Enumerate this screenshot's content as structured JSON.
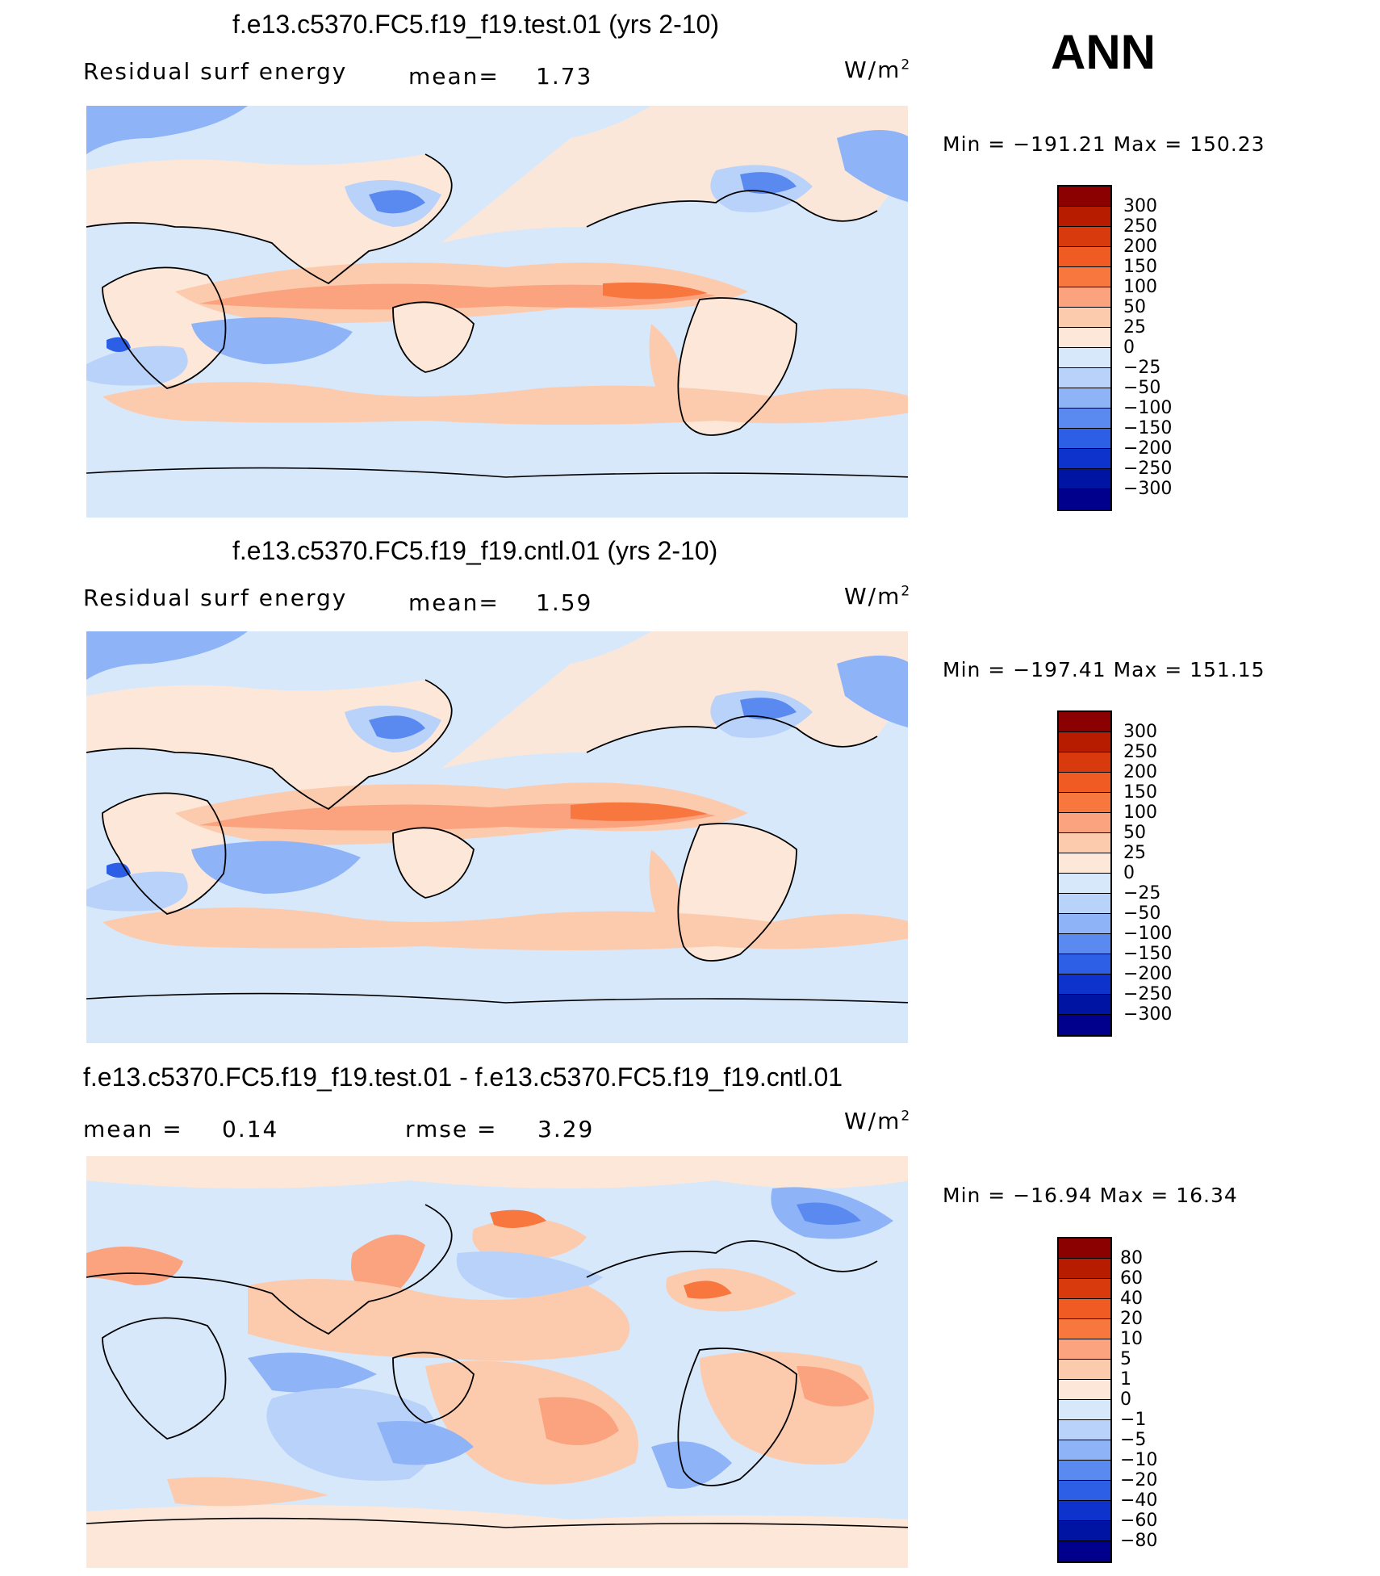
{
  "season": "ANN",
  "units": {
    "base": "W/m",
    "exp": "2"
  },
  "panels": [
    {
      "title": "f.e13.c5370.FC5.f19_f19.test.01 (yrs 2-10)",
      "left_label": "Residual surf energy",
      "mean_label": "mean=",
      "mean_value": "1.73",
      "minmax": "Min = −191.21 Max = 150.23"
    },
    {
      "title": "f.e13.c5370.FC5.f19_f19.cntl.01 (yrs 2-10)",
      "left_label": "Residual surf energy",
      "mean_label": "mean=",
      "mean_value": "1.59",
      "minmax": "Min = −197.41 Max = 151.15"
    },
    {
      "title": "f.e13.c5370.FC5.f19_f19.test.01 - f.e13.c5370.FC5.f19_f19.cntl.01",
      "mean_label": "mean =",
      "mean_value": "0.14",
      "rmse_label": "rmse =",
      "rmse_value": "3.29",
      "minmax": "Min = −16.94 Max =  16.34"
    }
  ],
  "colorbar_main": {
    "labels": [
      "300",
      "250",
      "200",
      "150",
      "100",
      "50",
      "25",
      "0",
      "−25",
      "−50",
      "−100",
      "−150",
      "−200",
      "−250",
      "−300"
    ],
    "colors": [
      "#8b0000",
      "#b71c00",
      "#d83a0e",
      "#f05a23",
      "#f8773f",
      "#fba27f",
      "#fccbae",
      "#fde7d8",
      "#d7e8fb",
      "#b9d2fa",
      "#8eb3f7",
      "#5a89f0",
      "#2c5fe6",
      "#0d33cc",
      "#0014a3",
      "#00008c"
    ]
  },
  "colorbar_diff": {
    "labels": [
      "80",
      "60",
      "40",
      "20",
      "10",
      "5",
      "1",
      "0",
      "−1",
      "−5",
      "−10",
      "−20",
      "−40",
      "−60",
      "−80"
    ],
    "colors": [
      "#8b0000",
      "#b71c00",
      "#d83a0e",
      "#f05a23",
      "#f8773f",
      "#fba27f",
      "#fccbae",
      "#fde7d8",
      "#d7e8fb",
      "#b9d2fa",
      "#8eb3f7",
      "#5a89f0",
      "#2c5fe6",
      "#0d33cc",
      "#0014a3",
      "#00008c"
    ]
  }
}
